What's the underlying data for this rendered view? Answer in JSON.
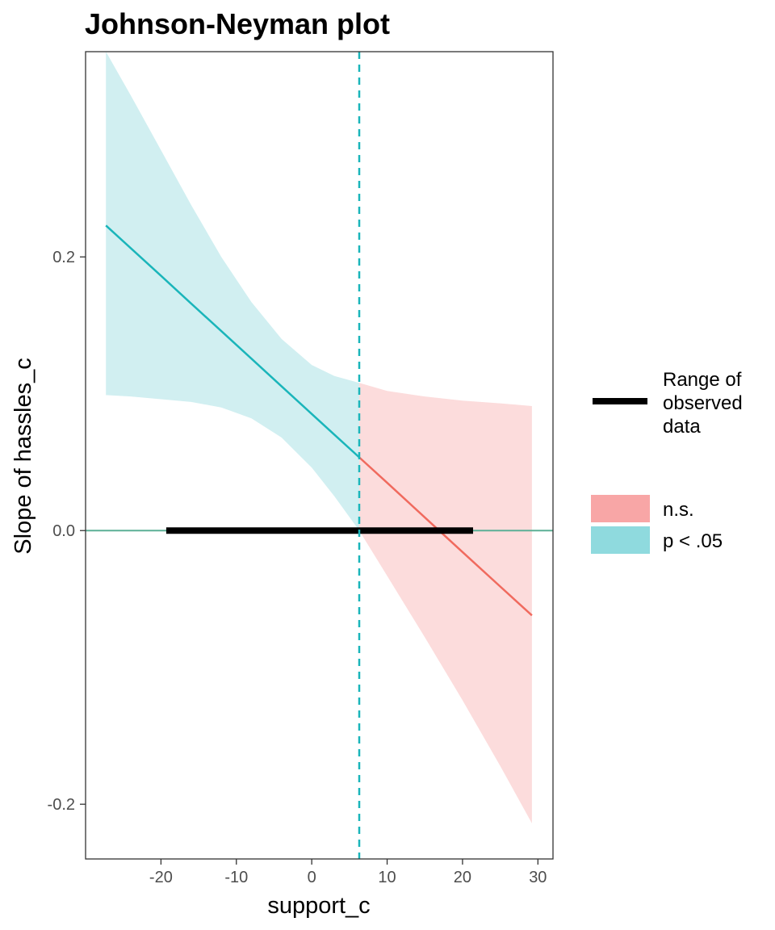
{
  "chart_data": {
    "type": "line",
    "title": "Johnson-Neyman plot",
    "xlabel": "support_c",
    "ylabel": "Slope of hassles_c",
    "xlim": [
      -30,
      32
    ],
    "ylim": [
      -0.24,
      0.35
    ],
    "x_ticks": [
      -20,
      -10,
      0,
      10,
      20,
      30
    ],
    "y_ticks": [
      -0.2,
      0.0,
      0.2
    ],
    "x_tick_labels": [
      "-20",
      "-10",
      "0",
      "10",
      "20",
      "30"
    ],
    "y_tick_labels": [
      "-0.2",
      "0.0",
      "0.2"
    ],
    "grid": false,
    "legend_position": "right",
    "johnson_neyman_point": 6.3,
    "observed_range": [
      -19.3,
      21.4
    ],
    "zero_line": 0,
    "slope_line": {
      "x": [
        -27.3,
        29.2
      ],
      "y": [
        0.223,
        -0.062
      ]
    },
    "significant_region": {
      "x": [
        -27.3,
        -24,
        -20,
        -16,
        -12,
        -8,
        -4,
        0,
        3,
        6.3
      ],
      "estimate": [
        0.223,
        0.2064,
        0.1862,
        0.166,
        0.1458,
        0.1256,
        0.1054,
        0.0852,
        0.0701,
        0.0535
      ],
      "upper": [
        0.35,
        0.318,
        0.278,
        0.238,
        0.2,
        0.167,
        0.14,
        0.121,
        0.113,
        0.108
      ],
      "lower": [
        0.099,
        0.098,
        0.096,
        0.094,
        0.09,
        0.082,
        0.068,
        0.046,
        0.025,
        0.0
      ]
    },
    "nonsignificant_region": {
      "x": [
        6.3,
        10,
        15,
        20,
        25,
        29.2
      ],
      "estimate": [
        0.0535,
        0.035,
        0.0096,
        -0.0157,
        -0.0409,
        -0.062
      ],
      "upper": [
        0.108,
        0.102,
        0.098,
        0.095,
        0.093,
        0.091
      ],
      "lower": [
        0.0,
        -0.033,
        -0.078,
        -0.124,
        -0.172,
        -0.214
      ]
    },
    "legend": {
      "line_label_lines": [
        "Range of",
        "observed",
        "data"
      ],
      "items": [
        {
          "label": "n.s.",
          "color": "#F8A6A6"
        },
        {
          "label": "p < .05",
          "color": "#8FDADE"
        }
      ]
    },
    "colors": {
      "significant_line": "#1AB5BA",
      "significant_band": "#D1EFF1",
      "nonsignificant_line": "#F06A5E",
      "nonsignificant_band": "#FCDCDC",
      "zero_line": "#5BAF96",
      "jn_line": "#1AB5BA",
      "range_line": "#000000"
    }
  }
}
